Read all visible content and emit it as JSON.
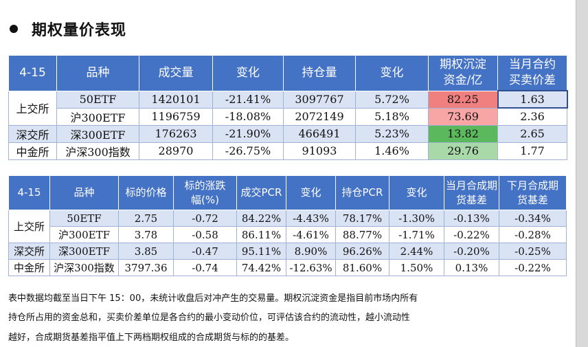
{
  "heading": "期权量价表现",
  "table1": {
    "headers": [
      "4-15",
      "品种",
      "成交量",
      "变化",
      "持仓量",
      "变化",
      "期权沉淀\n资金/亿",
      "当月合约\n买卖价差"
    ],
    "rows": [
      {
        "exchange": "上交所",
        "product": "50ETF",
        "volume": "1420101",
        "vol_change": "-21.41%",
        "oi": "3097767",
        "oi_change": "5.72%",
        "capital": "82.25",
        "spread": "1.63"
      },
      {
        "exchange": "",
        "product": "沪300ETF",
        "volume": "1196759",
        "vol_change": "-18.08%",
        "oi": "2072149",
        "oi_change": "5.18%",
        "capital": "73.69",
        "spread": "2.36"
      },
      {
        "exchange": "深交所",
        "product": "深300ETF",
        "volume": "176263",
        "vol_change": "-21.90%",
        "oi": "466491",
        "oi_change": "5.23%",
        "capital": "13.82",
        "spread": "2.65"
      },
      {
        "exchange": "中金所",
        "product": "沪深300指数",
        "volume": "28970",
        "vol_change": "-26.75%",
        "oi": "91093",
        "oi_change": "1.46%",
        "capital": "29.76",
        "spread": "1.77"
      }
    ],
    "capital_colors": [
      "#f08080",
      "#f8a5a5",
      "#5cb85c",
      "#a9d8a9"
    ]
  },
  "table2": {
    "headers": [
      "4-15",
      "品种",
      "标的价格",
      "标的涨跌\n幅(%)",
      "成交PCR",
      "变化",
      "持仓PCR",
      "变化",
      "当月合成期\n货基差",
      "下月合成期\n货基差"
    ],
    "rows": [
      {
        "exchange": "上交所",
        "product": "50ETF",
        "price": "2.75",
        "pct": "-0.72",
        "vol_pcr": "84.22%",
        "vol_pcr_change": "-4.43%",
        "oi_pcr": "78.17%",
        "oi_pcr_change": "-1.30%",
        "basis_cur": "-0.13%",
        "basis_next": "-0.34%"
      },
      {
        "exchange": "",
        "product": "沪300ETF",
        "price": "3.78",
        "pct": "-0.58",
        "vol_pcr": "86.11%",
        "vol_pcr_change": "-4.61%",
        "oi_pcr": "88.77%",
        "oi_pcr_change": "-1.71%",
        "basis_cur": "-0.22%",
        "basis_next": "-0.28%"
      },
      {
        "exchange": "深交所",
        "product": "深300ETF",
        "price": "3.85",
        "pct": "-0.47",
        "vol_pcr": "95.11%",
        "vol_pcr_change": "8.90%",
        "oi_pcr": "96.26%",
        "oi_pcr_change": "2.44%",
        "basis_cur": "-0.20%",
        "basis_next": "-0.25%"
      },
      {
        "exchange": "中金所",
        "product": "沪深300指数",
        "price": "3797.36",
        "pct": "-0.74",
        "vol_pcr": "74.42%",
        "vol_pcr_change": "-12.63%",
        "oi_pcr": "81.60%",
        "oi_pcr_change": "1.50%",
        "basis_cur": "0.13%",
        "basis_next": "-0.22%"
      }
    ]
  },
  "notes": [
    "表中数据均截至当日下午 15：00，未统计收盘后对冲产生的交易量。期权沉淀资金是指目前市场内所有",
    "持仓所占用的资金总和，买卖价差单位是各合约的最小变动价位，可评估该合约的流动性，越小流动性",
    "越好，合成期货基差指平值上下两档期权组成的合成期货与标的的基差。"
  ]
}
